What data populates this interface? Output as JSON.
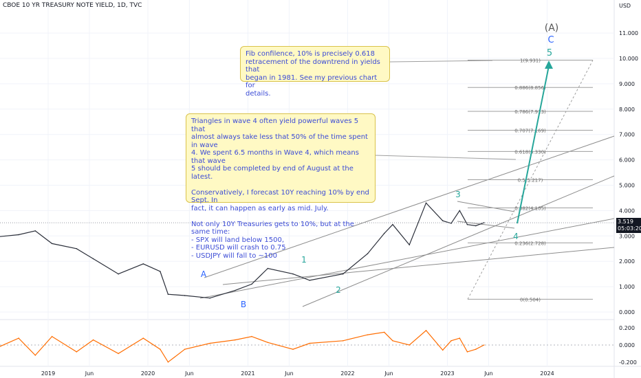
{
  "header": {
    "symbol_title": "CBOE 10 YR TREASURY NOTE YIELD, 1D, TVC"
  },
  "price_tag": {
    "last": "3.519",
    "countdown": "05:03:20"
  },
  "notes": {
    "fib": "Fib confilence, 10% is precisely 0.618\nretracement of the downtrend in yields that\nbegan in 1981. See my previous chart for\ndetails.",
    "triangle": "Triangles in wave 4 often yield powerful waves 5 that\nalmost always take less that 50% of the time spent in wave\n4. We spent 6.5 months in Wave 4, which means that wave\n5 should be completed by end of August at the latest.\n\nConservatively, I forecast 10Y reaching 10% by end Sept. In\nfact, it can happen as early as mid. July.\n\nNot only 10Y Treasuries gets to 10%, but at the same time:\n - SPX will land below 1500,\n - EURUSD will crash to 0.75\n - USDJPY will fall to ~100"
  },
  "colors": {
    "price_line": "#2a2e39",
    "grid": "#f0f3fa",
    "channel": "#8c8c8c",
    "fib": "#9e9e9e",
    "wave_label": "#26a69a",
    "ab_label": "#2962ff",
    "oscillator": "#ff6d00",
    "projection": "#26a69a",
    "degree_label": "#555555"
  },
  "chart_data": [
    {
      "type": "line",
      "title": "CBOE 10 YR TREASURY NOTE YIELD, 1D, TVC",
      "y_axis_label": "USD",
      "ylim": [
        -0.5,
        12.0
      ],
      "y_ticks": [
        "0.000",
        "1.000",
        "2.000",
        "3.000",
        "4.000",
        "5.000",
        "6.000",
        "7.000",
        "8.000",
        "9.000",
        "10.000",
        "11.000"
      ],
      "x_ticks": [
        "Jun",
        "2019",
        "Jun",
        "2020",
        "Jun",
        "2021",
        "Jun",
        "2022",
        "Jun",
        "2023",
        "Jun",
        "2024"
      ],
      "x": [
        "2018-03",
        "2018-06",
        "2018-09",
        "2018-11",
        "2019-01",
        "2019-04",
        "2019-06",
        "2019-09",
        "2019-12",
        "2020-02",
        "2020-03",
        "2020-05",
        "2020-08",
        "2020-11",
        "2021-01",
        "2021-03",
        "2021-06",
        "2021-08",
        "2021-12",
        "2022-03",
        "2022-05",
        "2022-06",
        "2022-08",
        "2022-10",
        "2022-12",
        "2023-01",
        "2023-02",
        "2023-03",
        "2023-04",
        "2023-05"
      ],
      "series": [
        {
          "values": [
            2.85,
            2.95,
            3.05,
            3.2,
            2.7,
            2.5,
            2.1,
            1.5,
            1.9,
            1.6,
            0.7,
            0.65,
            0.55,
            0.85,
            1.1,
            1.72,
            1.5,
            1.25,
            1.5,
            2.3,
            3.1,
            3.45,
            2.65,
            4.3,
            3.6,
            3.5,
            4.0,
            3.45,
            3.4,
            3.52
          ]
        }
      ],
      "wave_labels": [
        "(A)",
        "C",
        "5",
        "A",
        "B",
        "1",
        "2",
        "3",
        "4"
      ],
      "fib_levels": [
        {
          "ratio": "1",
          "value": 9.931,
          "label": "1(9.931)"
        },
        {
          "ratio": "0.886",
          "value": 8.856,
          "label": "0.886(8.856)"
        },
        {
          "ratio": "0.786",
          "value": 7.913,
          "label": "0.786(7.913)"
        },
        {
          "ratio": "0.707",
          "value": 7.169,
          "label": "0.707(7.169)"
        },
        {
          "ratio": "0.618",
          "value": 6.33,
          "label": "0.618(6.330)"
        },
        {
          "ratio": "0.5",
          "value": 5.217,
          "label": "0.5(5.217)"
        },
        {
          "ratio": "0.382",
          "value": 4.105,
          "label": "0.382(4.105)"
        },
        {
          "ratio": "0.236",
          "value": 2.728,
          "label": "0.236(2.728)"
        },
        {
          "ratio": "0",
          "value": 0.504,
          "label": "0(0.504)"
        }
      ],
      "last_value": 3.519
    },
    {
      "type": "line",
      "title": "",
      "ylim": [
        -0.25,
        0.25
      ],
      "y_ticks": [
        "0.200",
        "0.000",
        "-0.200"
      ],
      "series": [
        {
          "values": [
            0.05,
            -0.05,
            0.08,
            -0.12,
            0.1,
            -0.08,
            0.06,
            -0.1,
            0.08,
            -0.05,
            -0.2,
            -0.05,
            0.02,
            0.06,
            0.1,
            0.03,
            -0.05,
            0.02,
            0.05,
            0.12,
            0.15,
            0.05,
            0.0,
            0.17,
            -0.06,
            0.05,
            0.08,
            -0.08,
            -0.05,
            0.0
          ]
        }
      ]
    }
  ]
}
